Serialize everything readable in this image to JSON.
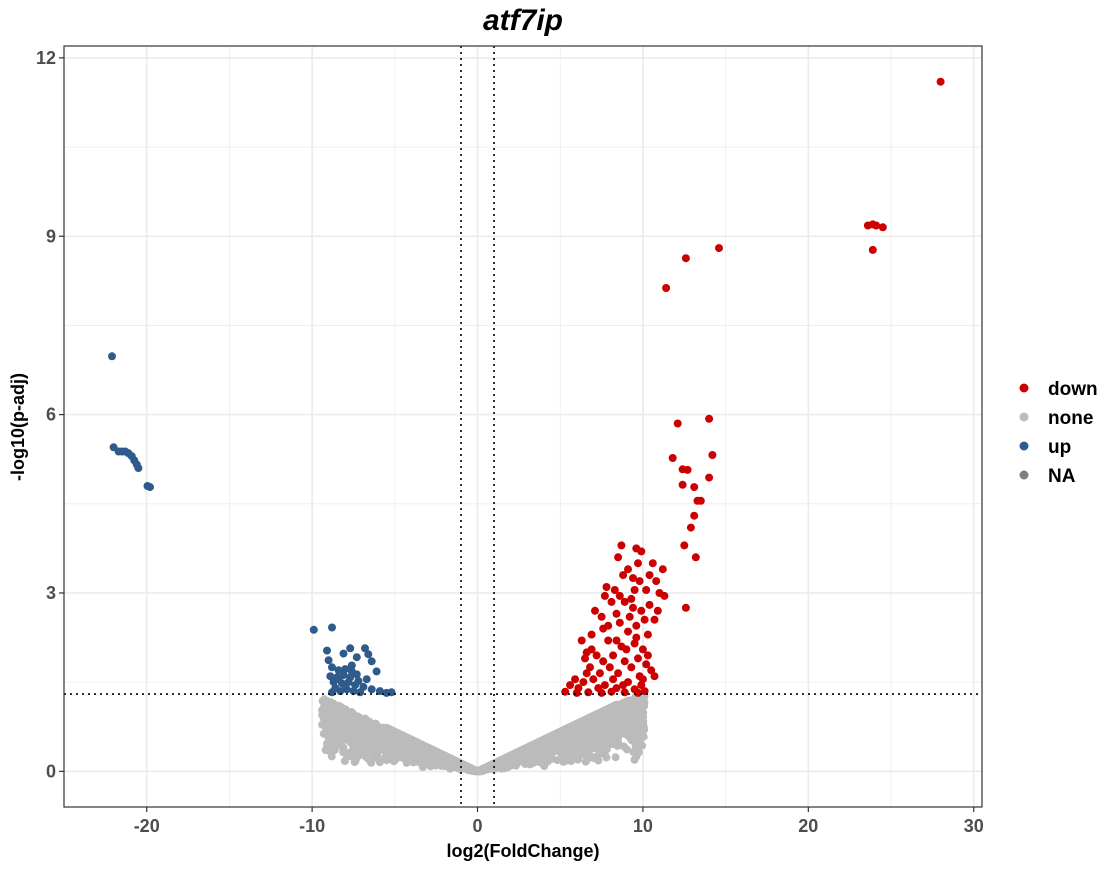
{
  "chart_data": {
    "type": "scatter",
    "title": "atf7ip",
    "xlabel": "log2(FoldChange)",
    "ylabel": "-log10(p-adj)",
    "xlim": [
      -25,
      30.5
    ],
    "ylim": [
      -0.6,
      12.2
    ],
    "x_ticks": [
      -20,
      -10,
      0,
      10,
      20,
      30
    ],
    "y_ticks": [
      0,
      3,
      6,
      9,
      12
    ],
    "grid": true,
    "thresholds": {
      "vlines": [
        -1,
        1
      ],
      "hline": 1.3
    },
    "legend": {
      "position": "right",
      "entries": [
        {
          "label": "down",
          "color": "#cc0000"
        },
        {
          "label": "none",
          "color": "#bbbbbb"
        },
        {
          "label": "up",
          "color": "#2e5a8c"
        },
        {
          "label": "NA",
          "color": "#7f7f7f"
        }
      ]
    },
    "series": [
      {
        "name": "down",
        "color": "#cc0000",
        "points": [
          [
            28,
            11.6
          ],
          [
            23.6,
            9.18
          ],
          [
            23.9,
            9.2
          ],
          [
            24.1,
            9.18
          ],
          [
            24.5,
            9.15
          ],
          [
            23.9,
            8.77
          ],
          [
            14.6,
            8.8
          ],
          [
            12.6,
            8.63
          ],
          [
            11.4,
            8.13
          ],
          [
            14,
            5.93
          ],
          [
            12.1,
            5.85
          ],
          [
            14.2,
            5.32
          ],
          [
            11.8,
            5.27
          ],
          [
            12.4,
            5.08
          ],
          [
            12.7,
            5.07
          ],
          [
            14,
            4.94
          ],
          [
            12.4,
            4.82
          ],
          [
            13.1,
            4.78
          ],
          [
            13.5,
            4.55
          ],
          [
            13.3,
            4.55
          ],
          [
            13.1,
            4.3
          ],
          [
            12.9,
            4.1
          ],
          [
            12.5,
            3.8
          ],
          [
            13.2,
            3.6
          ],
          [
            12.6,
            2.75
          ],
          [
            8.7,
            3.8
          ],
          [
            9.6,
            3.75
          ],
          [
            9.9,
            3.7
          ],
          [
            8.5,
            3.6
          ],
          [
            9.7,
            3.5
          ],
          [
            9.1,
            3.4
          ],
          [
            8.8,
            3.3
          ],
          [
            7.8,
            3.1
          ],
          [
            9.4,
            3.25
          ],
          [
            9.5,
            3.05
          ],
          [
            8.9,
            2.85
          ],
          [
            8.1,
            2.85
          ],
          [
            9.3,
            2.9
          ],
          [
            8.4,
            2.65
          ],
          [
            9.9,
            2.7
          ],
          [
            9.2,
            2.6
          ],
          [
            9.6,
            2.45
          ],
          [
            8.6,
            2.5
          ],
          [
            7.6,
            2.4
          ],
          [
            9.1,
            2.35
          ],
          [
            7.9,
            2.2
          ],
          [
            8.4,
            2.2
          ],
          [
            9.5,
            2.15
          ],
          [
            6.9,
            2.05
          ],
          [
            8.7,
            2.1
          ],
          [
            9.0,
            2.05
          ],
          [
            7.2,
            1.95
          ],
          [
            8.2,
            1.95
          ],
          [
            9.7,
            1.9
          ],
          [
            6.5,
            1.9
          ],
          [
            7.6,
            1.85
          ],
          [
            8.9,
            1.85
          ],
          [
            6.8,
            1.75
          ],
          [
            8.0,
            1.75
          ],
          [
            9.3,
            1.75
          ],
          [
            10.5,
            1.7
          ],
          [
            6.6,
            1.65
          ],
          [
            7.4,
            1.65
          ],
          [
            8.5,
            1.65
          ],
          [
            9.8,
            1.6
          ],
          [
            7.0,
            1.55
          ],
          [
            8.2,
            1.55
          ],
          [
            9.1,
            1.5
          ],
          [
            6.4,
            1.5
          ],
          [
            7.7,
            1.45
          ],
          [
            8.8,
            1.45
          ],
          [
            9.9,
            1.45
          ],
          [
            6.1,
            1.4
          ],
          [
            7.3,
            1.4
          ],
          [
            8.4,
            1.4
          ],
          [
            9.5,
            1.38
          ],
          [
            5.3,
            1.34
          ],
          [
            6.0,
            1.32
          ],
          [
            6.7,
            1.33
          ],
          [
            7.5,
            1.32
          ],
          [
            8.1,
            1.34
          ],
          [
            8.9,
            1.33
          ],
          [
            9.7,
            1.32
          ],
          [
            10.1,
            1.35
          ],
          [
            10.0,
            1.55
          ],
          [
            10.2,
            1.8
          ],
          [
            10.0,
            2.05
          ],
          [
            10.3,
            2.3
          ],
          [
            10.1,
            2.55
          ],
          [
            10.4,
            2.8
          ],
          [
            10.2,
            3.05
          ],
          [
            10.4,
            3.3
          ],
          [
            10.6,
            3.5
          ],
          [
            10.8,
            3.2
          ],
          [
            11.0,
            3.0
          ],
          [
            10.9,
            2.7
          ],
          [
            11.2,
            3.4
          ],
          [
            11.3,
            2.95
          ],
          [
            10.7,
            2.55
          ],
          [
            9.4,
            2.75
          ],
          [
            8.3,
            3.05
          ],
          [
            7.5,
            2.6
          ],
          [
            6.9,
            2.3
          ],
          [
            6.3,
            2.2
          ],
          [
            7.1,
            2.7
          ],
          [
            7.7,
            2.95
          ],
          [
            8.6,
            2.95
          ],
          [
            9.8,
            3.2
          ],
          [
            10.3,
            1.95
          ],
          [
            9.6,
            2.25
          ],
          [
            7.9,
            2.45
          ],
          [
            6.6,
            2.0
          ],
          [
            5.9,
            1.55
          ],
          [
            5.6,
            1.45
          ],
          [
            10.7,
            1.6
          ]
        ]
      },
      {
        "name": "up",
        "color": "#2e5a8c",
        "points": [
          [
            -22.1,
            6.98
          ],
          [
            -22.0,
            5.45
          ],
          [
            -21.7,
            5.38
          ],
          [
            -21.5,
            5.38
          ],
          [
            -21.3,
            5.38
          ],
          [
            -21.1,
            5.35
          ],
          [
            -20.9,
            5.3
          ],
          [
            -20.75,
            5.23
          ],
          [
            -20.6,
            5.16
          ],
          [
            -20.5,
            5.1
          ],
          [
            -19.95,
            4.8
          ],
          [
            -19.8,
            4.78
          ],
          [
            -9.9,
            2.38
          ],
          [
            -8.8,
            2.42
          ],
          [
            -7.7,
            2.07
          ],
          [
            -6.8,
            2.07
          ],
          [
            -6.6,
            1.97
          ],
          [
            -9.1,
            2.03
          ],
          [
            -8.1,
            1.98
          ],
          [
            -7.3,
            1.92
          ],
          [
            -6.4,
            1.85
          ],
          [
            -9.0,
            1.87
          ],
          [
            -8.8,
            1.75
          ],
          [
            -8.4,
            1.7
          ],
          [
            -8.0,
            1.72
          ],
          [
            -7.6,
            1.78
          ],
          [
            -6.1,
            1.68
          ],
          [
            -8.9,
            1.6
          ],
          [
            -8.5,
            1.58
          ],
          [
            -8.1,
            1.62
          ],
          [
            -7.7,
            1.58
          ],
          [
            -7.3,
            1.63
          ],
          [
            -6.7,
            1.55
          ],
          [
            -8.7,
            1.5
          ],
          [
            -8.2,
            1.48
          ],
          [
            -7.8,
            1.5
          ],
          [
            -7.4,
            1.45
          ],
          [
            -6.9,
            1.42
          ],
          [
            -6.4,
            1.38
          ],
          [
            -8.6,
            1.4
          ],
          [
            -8.3,
            1.35
          ],
          [
            -7.9,
            1.38
          ],
          [
            -7.5,
            1.35
          ],
          [
            -7.1,
            1.33
          ],
          [
            -5.9,
            1.35
          ],
          [
            -5.5,
            1.32
          ],
          [
            -5.2,
            1.33
          ],
          [
            -8.8,
            1.33
          ],
          [
            -8.0,
            1.45
          ],
          [
            -7.2,
            1.52
          ],
          [
            -8.4,
            1.55
          ],
          [
            -7.6,
            1.68
          ]
        ]
      }
    ],
    "none_region": "grey V-shaped cloud of non-significant genes spanning about log2FC -9.5 to 10 and -log10(p-adj) 0 to 1.3"
  }
}
